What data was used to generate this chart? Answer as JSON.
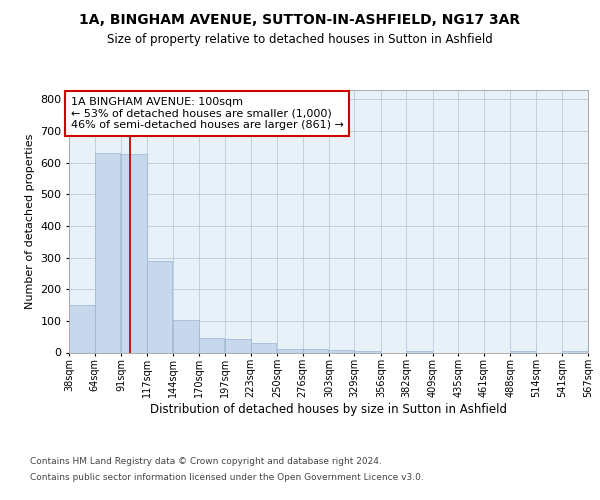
{
  "title1": "1A, BINGHAM AVENUE, SUTTON-IN-ASHFIELD, NG17 3AR",
  "title2": "Size of property relative to detached houses in Sutton in Ashfield",
  "xlabel": "Distribution of detached houses by size in Sutton in Ashfield",
  "ylabel": "Number of detached properties",
  "footer1": "Contains HM Land Registry data © Crown copyright and database right 2024.",
  "footer2": "Contains public sector information licensed under the Open Government Licence v3.0.",
  "bar_color": "#c8d8ec",
  "bar_edge_color": "#9ab4d0",
  "grid_color": "#c0cfe0",
  "bg_color": "#e8f0f8",
  "property_sqm": 100,
  "property_line_color": "#cc0000",
  "annotation_line1": "1A BINGHAM AVENUE: 100sqm",
  "annotation_line2": "← 53% of detached houses are smaller (1,000)",
  "annotation_line3": "46% of semi-detached houses are larger (861) →",
  "annotation_box_color": "#ffffff",
  "annotation_border_color": "#cc0000",
  "bin_edges": [
    38,
    64,
    91,
    117,
    144,
    170,
    197,
    223,
    250,
    276,
    303,
    329,
    356,
    382,
    409,
    435,
    461,
    488,
    514,
    541,
    567
  ],
  "bin_labels": [
    "38sqm",
    "64sqm",
    "91sqm",
    "117sqm",
    "144sqm",
    "170sqm",
    "197sqm",
    "223sqm",
    "250sqm",
    "276sqm",
    "303sqm",
    "329sqm",
    "356sqm",
    "382sqm",
    "409sqm",
    "435sqm",
    "461sqm",
    "488sqm",
    "514sqm",
    "541sqm",
    "567sqm"
  ],
  "bar_heights": [
    150,
    632,
    628,
    288,
    103,
    47,
    44,
    29,
    11,
    11,
    7,
    5,
    0,
    5,
    0,
    0,
    0,
    5,
    0,
    5,
    0
  ],
  "ylim": [
    0,
    830
  ],
  "yticks": [
    0,
    100,
    200,
    300,
    400,
    500,
    600,
    700,
    800
  ]
}
